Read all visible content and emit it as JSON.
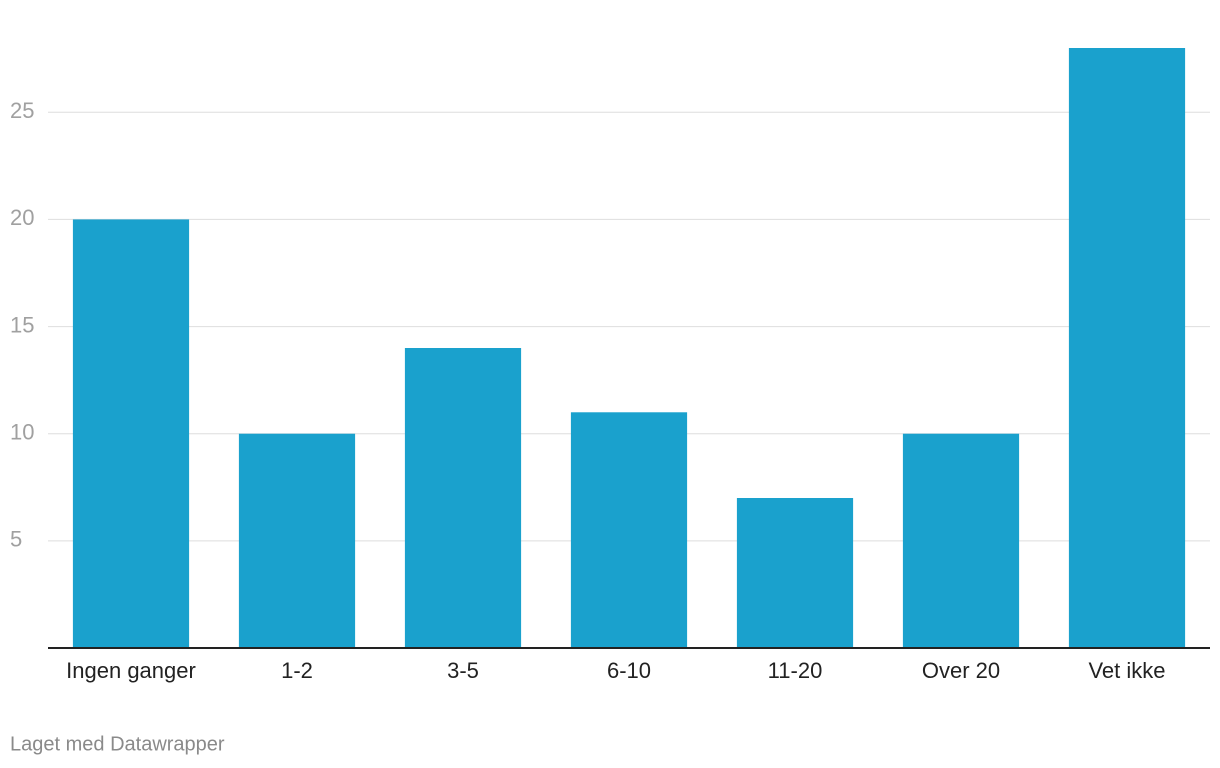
{
  "chart_data": {
    "type": "bar",
    "categories": [
      "Ingen ganger",
      "1-2",
      "3-5",
      "6-10",
      "11-20",
      "Over 20",
      "Vet ikke"
    ],
    "values": [
      20,
      10,
      14,
      11,
      7,
      10,
      28
    ],
    "color": "#1aa1cd",
    "ylim": [
      0,
      28
    ],
    "yticks": [
      5,
      10,
      15,
      20,
      25
    ],
    "grid": true,
    "credit": "Laget med Datawrapper"
  }
}
